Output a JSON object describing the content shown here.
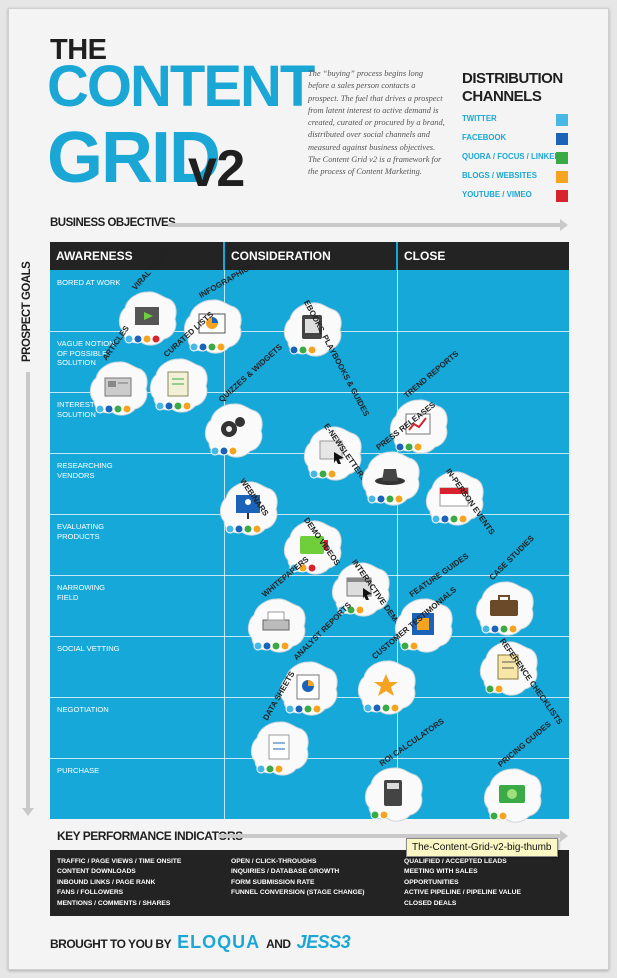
{
  "header": {
    "the": "THE",
    "content": "CONTENT",
    "grid": "GRID",
    "version": "v2",
    "intro": "The “buying” process begins long before a sales person contacts a prospect. The fuel that drives a prospect from latent interest to active demand is created, curated or procured by a brand, distributed over social channels and measured against business objectives. The Content Grid v2 is a framework for the process of Content Marketing."
  },
  "distribution": {
    "title_line1": "DISTRIBUTION",
    "title_line2": "CHANNELS",
    "channels": [
      {
        "label": "TWITTER",
        "color": "#47b8e6"
      },
      {
        "label": "FACEBOOK",
        "color": "#1a63b8"
      },
      {
        "label": "QUORA / FOCUS / LINKEDIN",
        "color": "#3aaa47"
      },
      {
        "label": "BLOGS / WEBSITES",
        "color": "#f5a320"
      },
      {
        "label": "YOUTUBE / VIMEO",
        "color": "#d6232e"
      }
    ]
  },
  "axes": {
    "business_objectives": "BUSINESS OBJECTIVES",
    "prospect_goals": "PROSPECT GOALS",
    "kpi_title": "KEY PERFORMANCE INDICATORS"
  },
  "grid": {
    "columns": [
      "AWARENESS",
      "CONSIDERATION",
      "CLOSE"
    ],
    "rows": [
      "BORED AT WORK",
      "VAGUE NOTION OF POSSIBLE SOLUTION",
      "INTERESTED IN A SOLUTION",
      "RESEARCHING VENDORS",
      "EVALUATING PRODUCTS",
      "NARROWING FIELD",
      "SOCIAL VETTING",
      "NEGOTIATION",
      "PURCHASE"
    ]
  },
  "content_types": [
    {
      "label": "VIRAL VIDEOS",
      "icon": "video-player-icon",
      "channels": [
        "#47b8e6",
        "#1a63b8",
        "#f5a320",
        "#d6232e"
      ]
    },
    {
      "label": "INFOGRAPHICS",
      "icon": "pie-chart-easel-icon",
      "channels": [
        "#47b8e6",
        "#1a63b8",
        "#3aaa47",
        "#f5a320"
      ]
    },
    {
      "label": "EBOOKS, PLAYBOOKS & GUIDES",
      "icon": "ebook-reader-icon",
      "channels": [
        "#1a63b8",
        "#3aaa47",
        "#f5a320"
      ]
    },
    {
      "label": "ARTICLES",
      "icon": "newspaper-icon",
      "channels": [
        "#47b8e6",
        "#1a63b8",
        "#3aaa47",
        "#f5a320"
      ]
    },
    {
      "label": "CURATED LISTS",
      "icon": "list-sheet-icon",
      "channels": [
        "#47b8e6",
        "#1a63b8",
        "#3aaa47",
        "#f5a320"
      ]
    },
    {
      "label": "QUIZZES & WIDGETS",
      "icon": "gears-icon",
      "channels": [
        "#47b8e6",
        "#1a63b8",
        "#f5a320"
      ]
    },
    {
      "label": "TREND REPORTS",
      "icon": "trend-report-icon",
      "channels": [
        "#1a63b8",
        "#3aaa47",
        "#f5a320"
      ]
    },
    {
      "label": "E-NEWSLETTERS",
      "icon": "newsletter-cursor-icon",
      "channels": [
        "#47b8e6",
        "#3aaa47",
        "#f5a320"
      ]
    },
    {
      "label": "PRESS RELEASES",
      "icon": "fedora-hat-icon",
      "channels": [
        "#47b8e6",
        "#1a63b8",
        "#3aaa47",
        "#f5a320"
      ]
    },
    {
      "label": "IN-PERSON EVENTS",
      "icon": "name-badge-icon",
      "channels": [
        "#47b8e6",
        "#1a63b8",
        "#3aaa47",
        "#f5a320"
      ]
    },
    {
      "label": "WEBINARS",
      "icon": "presenter-screen-icon",
      "channels": [
        "#47b8e6",
        "#1a63b8",
        "#3aaa47",
        "#f5a320"
      ]
    },
    {
      "label": "DEMO VIDEOS",
      "icon": "step-video-icon",
      "channels": [
        "#47b8e6",
        "#f5a320",
        "#d6232e"
      ]
    },
    {
      "label": "INTERACTIVE DEMOS",
      "icon": "browser-cursor-icon",
      "channels": [
        "#47b8e6",
        "#3aaa47",
        "#f5a320"
      ]
    },
    {
      "label": "WHITEPAPERS",
      "icon": "paper-shredder-icon",
      "channels": [
        "#47b8e6",
        "#1a63b8",
        "#3aaa47",
        "#f5a320"
      ]
    },
    {
      "label": "FEATURE GUIDES",
      "icon": "feature-box-icon",
      "channels": [
        "#3aaa47",
        "#f5a320"
      ]
    },
    {
      "label": "CASE STUDIES",
      "icon": "briefcase-icon",
      "channels": [
        "#47b8e6",
        "#1a63b8",
        "#3aaa47",
        "#f5a320"
      ]
    },
    {
      "label": "ANALYST REPORTS",
      "icon": "analyst-chart-icon",
      "channels": [
        "#47b8e6",
        "#1a63b8",
        "#3aaa47",
        "#f5a320"
      ]
    },
    {
      "label": "CUSTOMER TESTIMONIALS",
      "icon": "star-icon",
      "channels": [
        "#47b8e6",
        "#1a63b8",
        "#3aaa47",
        "#f5a320"
      ]
    },
    {
      "label": "REFERENCE CHECKLISTS",
      "icon": "checklist-icon",
      "channels": [
        "#3aaa47",
        "#f5a320"
      ]
    },
    {
      "label": "DATA SHEETS",
      "icon": "data-sheet-icon",
      "channels": [
        "#47b8e6",
        "#3aaa47",
        "#f5a320"
      ]
    },
    {
      "label": "ROI CALCULATORS",
      "icon": "calculator-icon",
      "channels": [
        "#3aaa47",
        "#f5a320"
      ]
    },
    {
      "label": "PRICING GUIDES",
      "icon": "dollar-bill-icon",
      "channels": [
        "#3aaa47",
        "#f5a320"
      ]
    }
  ],
  "kpis": {
    "awareness": [
      "TRAFFIC / PAGE VIEWS / TIME ONSITE",
      "CONTENT DOWNLOADS",
      "INBOUND LINKS / PAGE RANK",
      "FANS / FOLLOWERS",
      "MENTIONS / COMMENTS / SHARES"
    ],
    "consideration": [
      "OPEN / CLICK-THROUGHS",
      "INQUIRIES / DATABASE GROWTH",
      "FORM SUBMISSION RATE",
      "FUNNEL CONVERSION (STAGE CHANGE)"
    ],
    "close": [
      "QUALIFIED / ACCEPTED LEADS",
      "MEETING WITH SALES",
      "OPPORTUNITIES",
      "ACTIVE PIPELINE / PIPELINE VALUE",
      "CLOSED DEALS"
    ]
  },
  "tooltip": "The-Content-Grid-v2-big-thumb",
  "footer": {
    "brought": "BROUGHT TO YOU BY",
    "brand1": "ELOQUA",
    "and": "AND",
    "brand2": "JESS3"
  }
}
